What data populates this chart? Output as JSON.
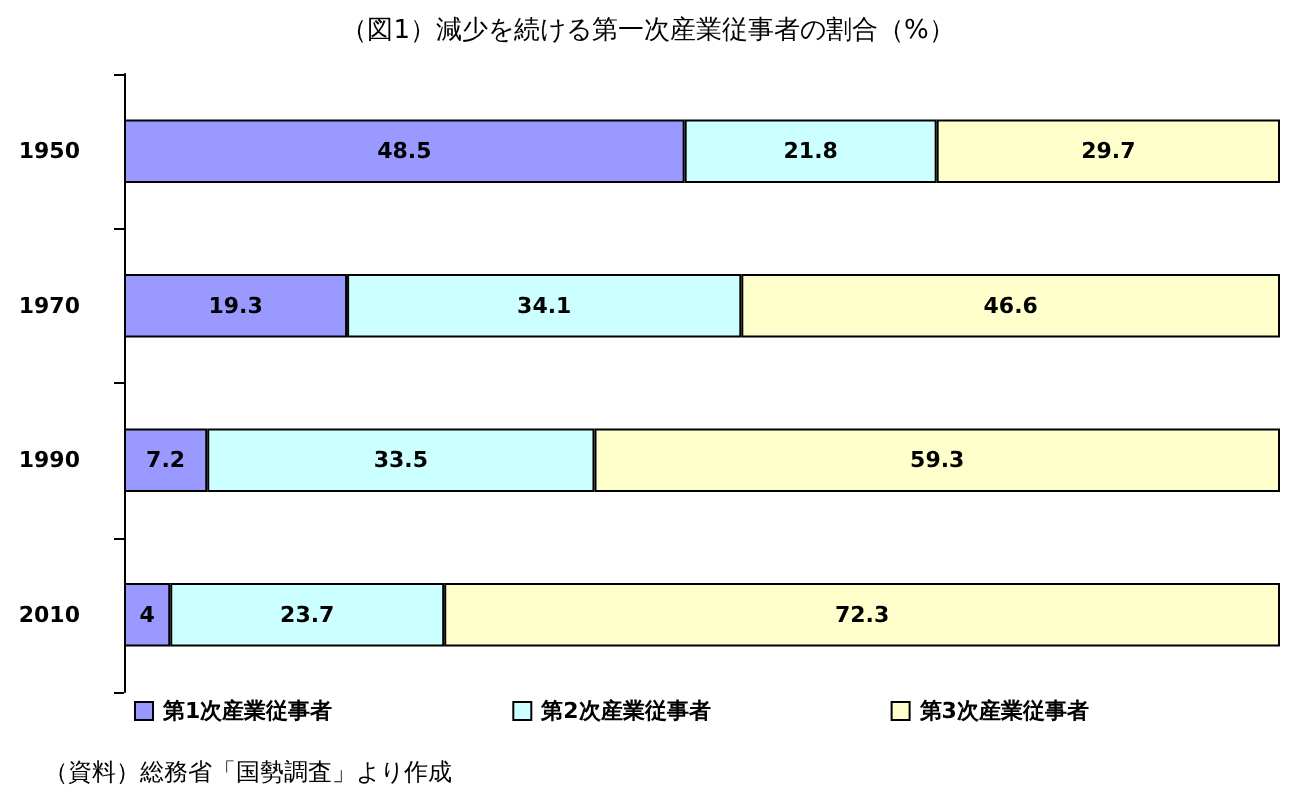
{
  "chart_data": {
    "type": "bar",
    "orientation": "horizontal",
    "stacked": true,
    "title": "（図1）減少を続ける第一次産業従事者の割合（%）",
    "categories": [
      "1950",
      "1970",
      "1990",
      "2010"
    ],
    "series": [
      {
        "name": "第1次産業従事者",
        "color": "#9999ff",
        "values": [
          48.5,
          19.3,
          7.2,
          4
        ]
      },
      {
        "name": "第2次産業従事者",
        "color": "#ccffff",
        "values": [
          21.8,
          34.1,
          33.5,
          23.7
        ]
      },
      {
        "name": "第3次産業従事者",
        "color": "#ffffcc",
        "values": [
          29.7,
          46.6,
          59.3,
          72.3
        ]
      }
    ],
    "xlim": [
      0,
      100
    ],
    "tick_labels": "y",
    "data_labels": true,
    "legend": "bottom",
    "grid": false,
    "annotations": [
      "（資料）総務省「国勢調査」より作成"
    ]
  }
}
